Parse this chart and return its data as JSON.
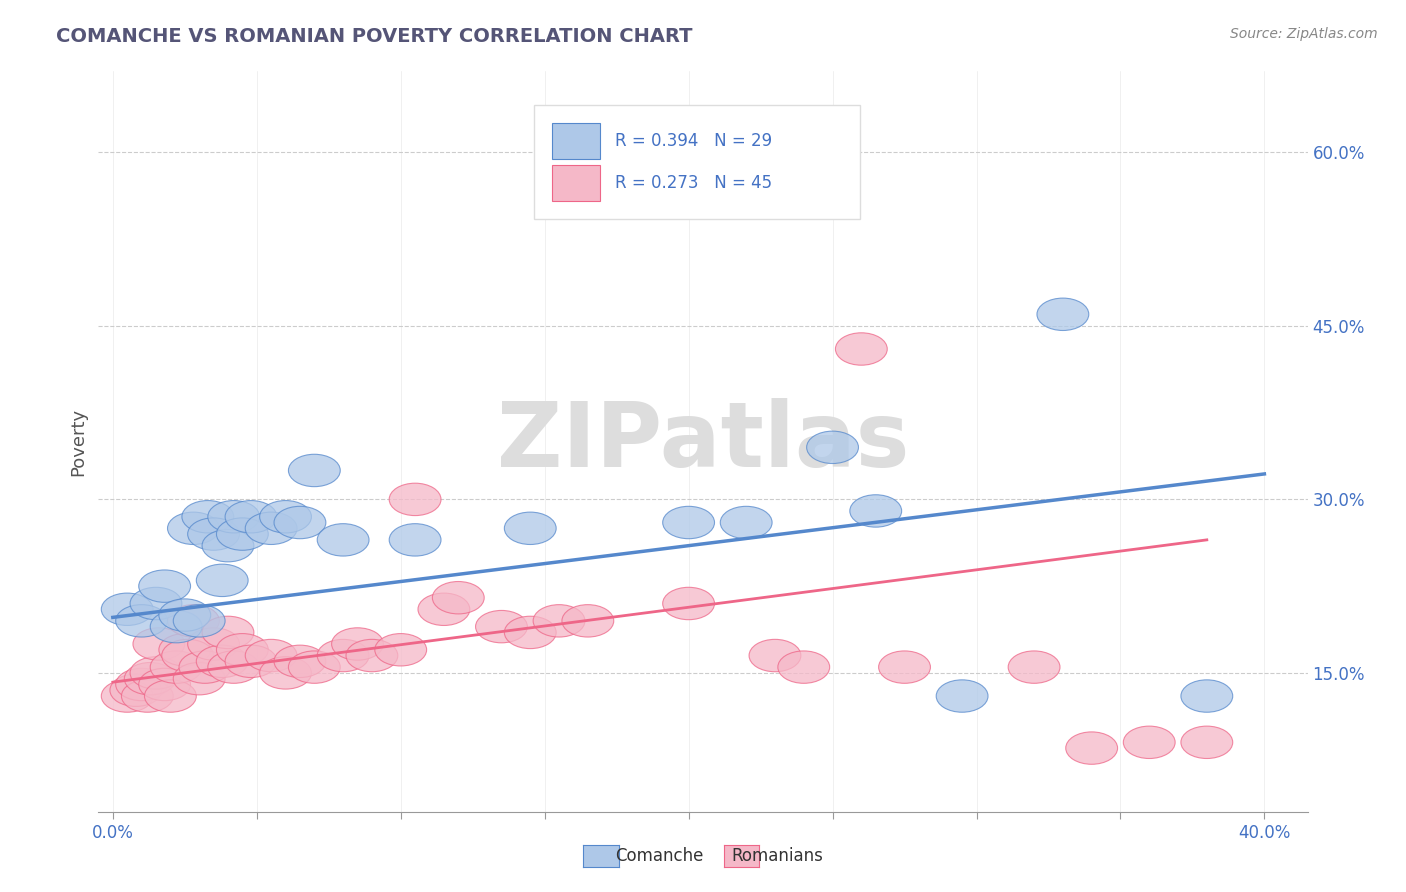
{
  "title": "COMANCHE VS ROMANIAN POVERTY CORRELATION CHART",
  "source_text": "Source: ZipAtlas.com",
  "ylabel": "Poverty",
  "xlim": [
    -0.005,
    0.415
  ],
  "ylim": [
    0.03,
    0.67
  ],
  "xticks": [
    0.0,
    0.05,
    0.1,
    0.15,
    0.2,
    0.25,
    0.3,
    0.35,
    0.4
  ],
  "ytick_positions": [
    0.15,
    0.3,
    0.45,
    0.6
  ],
  "ytick_labels": [
    "15.0%",
    "30.0%",
    "45.0%",
    "60.0%"
  ],
  "comanche_color": "#aec8e8",
  "romanian_color": "#f5b8c8",
  "comanche_edge": "#5588cc",
  "romanian_edge": "#ee6688",
  "legend_R1": "R = 0.394",
  "legend_N1": "N = 29",
  "legend_R2": "R = 0.273",
  "legend_N2": "N = 45",
  "watermark": "ZIPatlas",
  "comanche_points": [
    [
      0.005,
      0.205
    ],
    [
      0.01,
      0.195
    ],
    [
      0.015,
      0.21
    ],
    [
      0.018,
      0.225
    ],
    [
      0.022,
      0.19
    ],
    [
      0.025,
      0.2
    ],
    [
      0.028,
      0.275
    ],
    [
      0.03,
      0.195
    ],
    [
      0.033,
      0.285
    ],
    [
      0.035,
      0.27
    ],
    [
      0.038,
      0.23
    ],
    [
      0.04,
      0.26
    ],
    [
      0.042,
      0.285
    ],
    [
      0.045,
      0.27
    ],
    [
      0.048,
      0.285
    ],
    [
      0.055,
      0.275
    ],
    [
      0.06,
      0.285
    ],
    [
      0.065,
      0.28
    ],
    [
      0.07,
      0.325
    ],
    [
      0.08,
      0.265
    ],
    [
      0.105,
      0.265
    ],
    [
      0.145,
      0.275
    ],
    [
      0.2,
      0.28
    ],
    [
      0.22,
      0.28
    ],
    [
      0.25,
      0.345
    ],
    [
      0.265,
      0.29
    ],
    [
      0.295,
      0.13
    ],
    [
      0.33,
      0.46
    ],
    [
      0.38,
      0.13
    ]
  ],
  "romanian_points": [
    [
      0.005,
      0.13
    ],
    [
      0.008,
      0.135
    ],
    [
      0.01,
      0.14
    ],
    [
      0.012,
      0.13
    ],
    [
      0.013,
      0.145
    ],
    [
      0.015,
      0.15
    ],
    [
      0.016,
      0.175
    ],
    [
      0.018,
      0.14
    ],
    [
      0.02,
      0.13
    ],
    [
      0.022,
      0.155
    ],
    [
      0.025,
      0.17
    ],
    [
      0.026,
      0.165
    ],
    [
      0.028,
      0.195
    ],
    [
      0.03,
      0.145
    ],
    [
      0.032,
      0.155
    ],
    [
      0.035,
      0.175
    ],
    [
      0.038,
      0.16
    ],
    [
      0.04,
      0.185
    ],
    [
      0.042,
      0.155
    ],
    [
      0.045,
      0.17
    ],
    [
      0.048,
      0.16
    ],
    [
      0.055,
      0.165
    ],
    [
      0.06,
      0.15
    ],
    [
      0.065,
      0.16
    ],
    [
      0.07,
      0.155
    ],
    [
      0.08,
      0.165
    ],
    [
      0.085,
      0.175
    ],
    [
      0.09,
      0.165
    ],
    [
      0.1,
      0.17
    ],
    [
      0.105,
      0.3
    ],
    [
      0.115,
      0.205
    ],
    [
      0.12,
      0.215
    ],
    [
      0.135,
      0.19
    ],
    [
      0.145,
      0.185
    ],
    [
      0.155,
      0.195
    ],
    [
      0.165,
      0.195
    ],
    [
      0.2,
      0.21
    ],
    [
      0.23,
      0.165
    ],
    [
      0.24,
      0.155
    ],
    [
      0.26,
      0.43
    ],
    [
      0.275,
      0.155
    ],
    [
      0.32,
      0.155
    ],
    [
      0.34,
      0.085
    ],
    [
      0.36,
      0.09
    ],
    [
      0.38,
      0.09
    ]
  ],
  "comanche_line_x": [
    0.0,
    0.4
  ],
  "comanche_line_y": [
    0.198,
    0.322
  ],
  "romanian_line_x": [
    0.0,
    0.38
  ],
  "romanian_line_y": [
    0.142,
    0.265
  ],
  "grid_color": "#cccccc",
  "background_color": "#ffffff"
}
